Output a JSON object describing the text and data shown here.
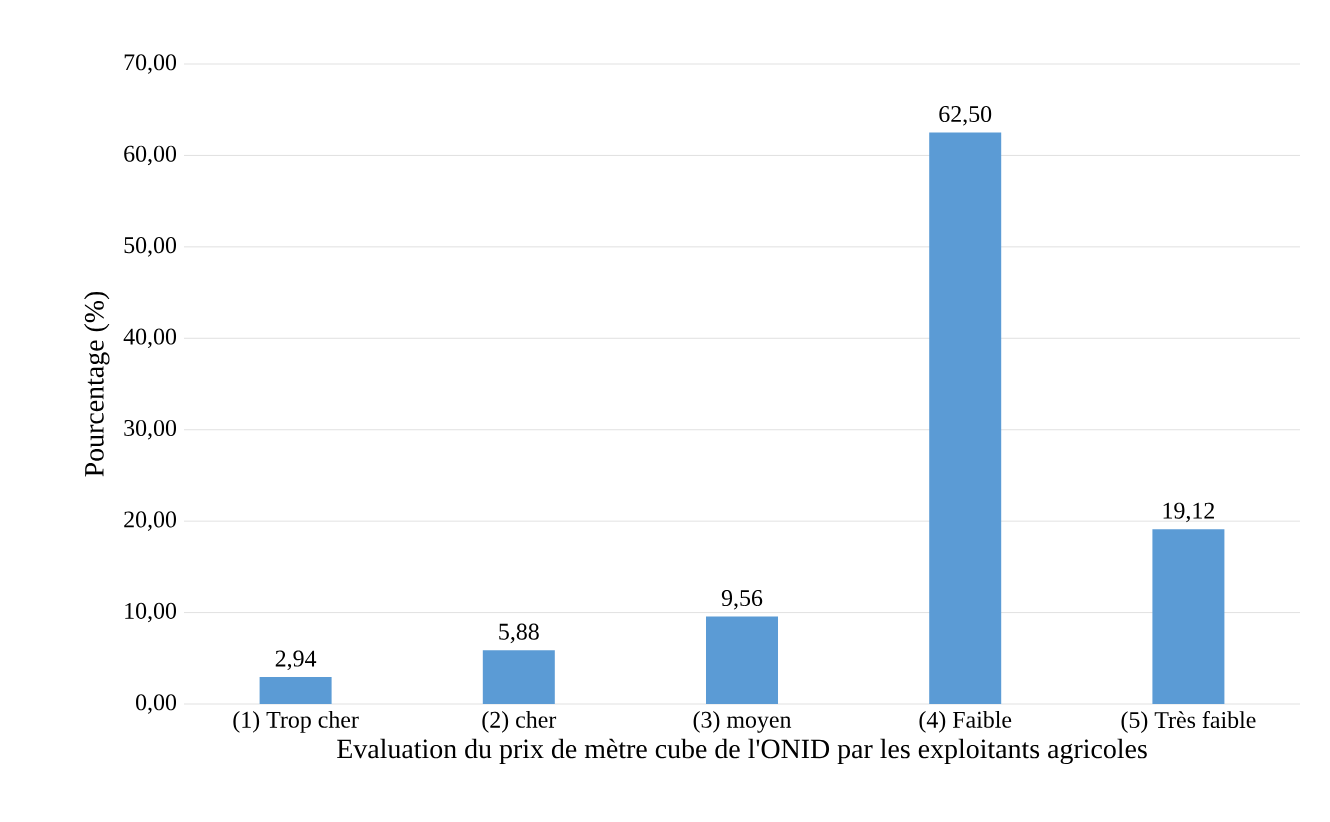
{
  "chart_data": {
    "type": "bar",
    "xlabel": "Evaluation  du prix de mètre cube de l'ONID par les exploitants agricoles",
    "ylabel": "Pourcentage (%)",
    "categories": [
      "(1) Trop cher",
      "(2) cher",
      "(3) moyen",
      "(4) Faible",
      "(5) Très faible"
    ],
    "values": [
      2.94,
      5.88,
      9.56,
      62.5,
      19.12
    ],
    "value_labels": [
      "2,94",
      "5,88",
      "9,56",
      "62,50",
      "19,12"
    ],
    "color": "#5b9bd5",
    "ylim": [
      0,
      70
    ],
    "yticks": [
      {
        "value": 0,
        "label": "0,00"
      },
      {
        "value": 10,
        "label": "10,00"
      },
      {
        "value": 20,
        "label": "20,00"
      },
      {
        "value": 30,
        "label": "30,00"
      },
      {
        "value": 40,
        "label": "40,00"
      },
      {
        "value": 50,
        "label": "50,00"
      },
      {
        "value": 60,
        "label": "60,00"
      },
      {
        "value": 70,
        "label": "70,00"
      }
    ],
    "grid": "y"
  }
}
